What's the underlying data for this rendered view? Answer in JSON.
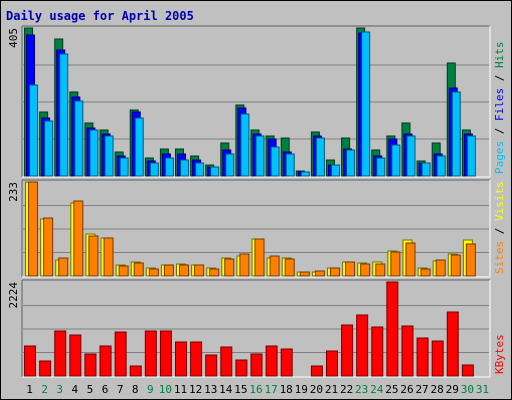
{
  "chart_data": {
    "type": "bar",
    "title": "Daily usage for April 2005",
    "days": [
      "1",
      "2",
      "3",
      "4",
      "5",
      "6",
      "7",
      "8",
      "9",
      "10",
      "11",
      "12",
      "13",
      "14",
      "15",
      "16",
      "17",
      "18",
      "19",
      "20",
      "21",
      "22",
      "23",
      "24",
      "25",
      "26",
      "27",
      "28",
      "29",
      "30",
      "31"
    ],
    "weekend_days": [
      "2",
      "3",
      "9",
      "10",
      "16",
      "17",
      "23",
      "24",
      "30",
      "31"
    ],
    "panels": [
      {
        "name": "hits_files_pages",
        "max_label": "405",
        "ymax": 405,
        "right_label": [
          "Pages",
          " / ",
          "Files",
          " / ",
          "Hits"
        ],
        "series": [
          {
            "name": "Hits",
            "color": "#008040",
            "values": [
              405,
              175,
              375,
              230,
              145,
              125,
              65,
              180,
              50,
              75,
              75,
              55,
              30,
              90,
              195,
              125,
              110,
              105,
              15,
              120,
              45,
              105,
              405,
              70,
              110,
              145,
              40,
              90,
              310,
              125,
              0
            ]
          },
          {
            "name": "Files",
            "color": "#0000ff",
            "values": [
              385,
              160,
              345,
              215,
              130,
              115,
              55,
              175,
              40,
              60,
              60,
              45,
              25,
              70,
              185,
              115,
              100,
              65,
              10,
              110,
              30,
              75,
              390,
              55,
              100,
              115,
              35,
              60,
              240,
              115,
              0
            ]
          },
          {
            "name": "Pages",
            "color": "#00c0ff",
            "values": [
              250,
              150,
              335,
              205,
              125,
              110,
              50,
              160,
              35,
              50,
              45,
              35,
              25,
              60,
              170,
              110,
              80,
              60,
              10,
              105,
              30,
              70,
              395,
              50,
              85,
              110,
              35,
              55,
              230,
              110,
              0
            ]
          }
        ]
      },
      {
        "name": "visits_sites",
        "max_label": "233",
        "ymax": 233,
        "right_label": [
          "Sites",
          " / ",
          "Visits"
        ],
        "series": [
          {
            "name": "Visits",
            "color": "#ffff00",
            "values": [
              233,
              142,
              40,
              180,
              105,
              95,
              27,
              35,
              20,
              27,
              30,
              28,
              20,
              45,
              50,
              92,
              45,
              45,
              10,
              10,
              20,
              35,
              32,
              35,
              62,
              88,
              20,
              38,
              55,
              88,
              0
            ]
          },
          {
            "name": "Sites",
            "color": "#ff8000",
            "values": [
              233,
              145,
              45,
              185,
              100,
              93,
              25,
              32,
              18,
              28,
              28,
              28,
              18,
              43,
              55,
              92,
              50,
              43,
              10,
              12,
              20,
              35,
              30,
              30,
              60,
              82,
              18,
              40,
              52,
              80,
              0
            ]
          }
        ]
      },
      {
        "name": "kbytes",
        "max_label": "2224",
        "ymax": 2224,
        "right_label": [
          "KBytes"
        ],
        "series": [
          {
            "name": "KBytes",
            "color": "#ff0000",
            "values": [
              700,
              360,
              1070,
              960,
              520,
              720,
              1050,
              240,
              1075,
              1075,
              800,
              800,
              500,
              690,
              380,
              520,
              710,
              640,
              0,
              230,
              580,
              1210,
              1440,
              1160,
              2224,
              1190,
              910,
              820,
              1510,
              250,
              0
            ]
          }
        ]
      }
    ]
  }
}
